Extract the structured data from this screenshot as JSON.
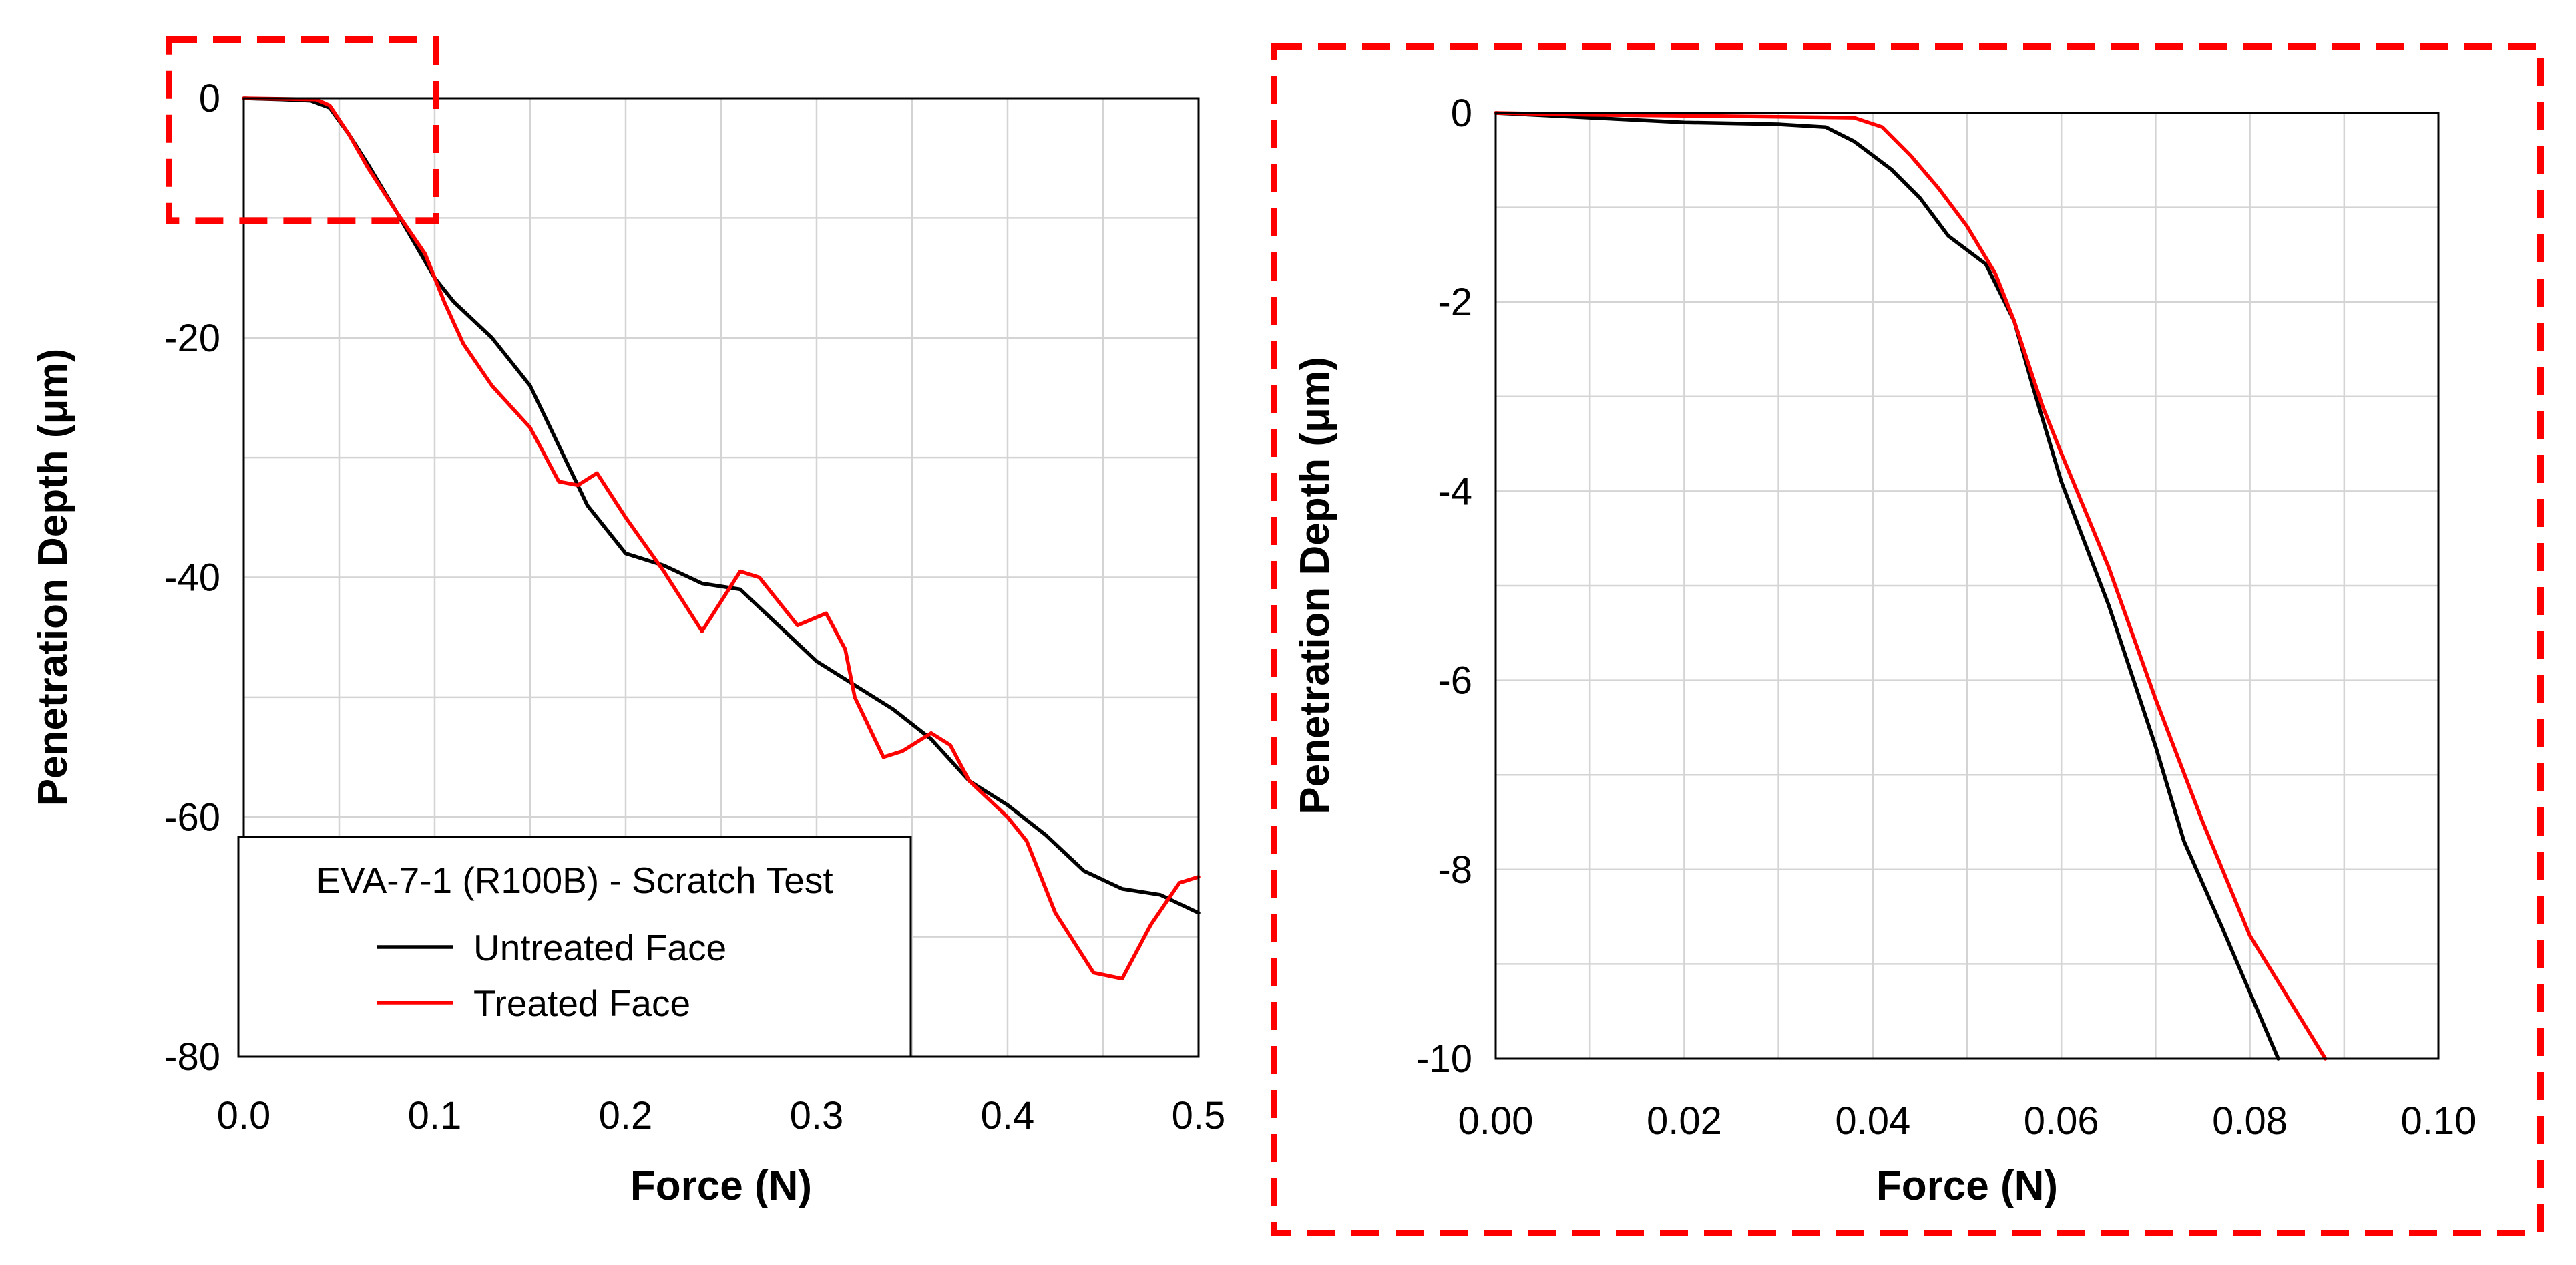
{
  "chart_data": [
    {
      "type": "line",
      "title": "",
      "xlabel": "Force (N)",
      "ylabel": "Penetration Depth (μm)",
      "xlim": [
        0,
        0.5
      ],
      "ylim": [
        -80,
        0
      ],
      "xticks": [
        "0.0",
        "0.1",
        "0.2",
        "0.3",
        "0.4",
        "0.5"
      ],
      "yticks": [
        "0",
        "-20",
        "-40",
        "-60",
        "-80"
      ],
      "grid": true,
      "legend": {
        "title": "EVA-7-1 (R100B) - Scratch Test",
        "placement": "bottom-left",
        "entries": [
          "Untreated Face",
          "Treated Face"
        ]
      },
      "zoom_region": {
        "x": [
          0,
          0.1
        ],
        "y": [
          -10,
          0
        ]
      },
      "series": [
        {
          "name": "Untreated Face",
          "color": "#000000",
          "x": [
            0,
            0.02,
            0.035,
            0.045,
            0.055,
            0.065,
            0.08,
            0.1,
            0.11,
            0.13,
            0.15,
            0.165,
            0.18,
            0.2,
            0.22,
            0.24,
            0.26,
            0.28,
            0.3,
            0.32,
            0.34,
            0.36,
            0.38,
            0.4,
            0.42,
            0.44,
            0.46,
            0.48,
            0.5
          ],
          "y": [
            0,
            -0.1,
            -0.2,
            -0.8,
            -3,
            -5.5,
            -9.5,
            -15,
            -17,
            -20,
            -24,
            -29,
            -34,
            -38,
            -39,
            -40.5,
            -41,
            -44,
            -47,
            -49,
            -51,
            -53.5,
            -57,
            -59,
            -61.5,
            -64.5,
            -66,
            -66.5,
            -68
          ]
        },
        {
          "name": "Treated Face",
          "color": "#ff0000",
          "x": [
            0,
            0.02,
            0.038,
            0.045,
            0.055,
            0.065,
            0.08,
            0.095,
            0.105,
            0.115,
            0.13,
            0.15,
            0.165,
            0.175,
            0.185,
            0.2,
            0.22,
            0.24,
            0.26,
            0.27,
            0.29,
            0.305,
            0.315,
            0.32,
            0.335,
            0.345,
            0.36,
            0.37,
            0.38,
            0.4,
            0.41,
            0.425,
            0.445,
            0.46,
            0.475,
            0.49,
            0.5
          ],
          "y": [
            0,
            -0.05,
            -0.1,
            -0.6,
            -3,
            -5.8,
            -9.5,
            -13,
            -17,
            -20.5,
            -24,
            -27.5,
            -32,
            -32.3,
            -31.3,
            -35,
            -39.5,
            -44.5,
            -39.5,
            -40,
            -44,
            -43,
            -46,
            -50,
            -55,
            -54.5,
            -53,
            -54,
            -57,
            -60,
            -62,
            -68,
            -73,
            -73.5,
            -69,
            -65.5,
            -65
          ]
        }
      ]
    },
    {
      "type": "line",
      "title": "",
      "xlabel": "Force (N)",
      "ylabel": "Penetration Depth (μm)",
      "xlim": [
        0,
        0.1
      ],
      "ylim": [
        -10,
        0
      ],
      "xticks": [
        "0.00",
        "0.02",
        "0.04",
        "0.06",
        "0.08",
        "0.10"
      ],
      "yticks": [
        "0",
        "-2",
        "-4",
        "-6",
        "-8",
        "-10"
      ],
      "grid": true,
      "series": [
        {
          "name": "Untreated Face",
          "color": "#000000",
          "x": [
            0,
            0.01,
            0.02,
            0.03,
            0.035,
            0.038,
            0.042,
            0.045,
            0.048,
            0.052,
            0.055,
            0.057,
            0.06,
            0.065,
            0.07,
            0.073,
            0.077,
            0.083
          ],
          "y": [
            0,
            -0.05,
            -0.1,
            -0.12,
            -0.15,
            -0.3,
            -0.6,
            -0.9,
            -1.3,
            -1.6,
            -2.2,
            -2.9,
            -3.9,
            -5.2,
            -6.7,
            -7.7,
            -8.6,
            -10
          ]
        },
        {
          "name": "Treated Face",
          "color": "#ff0000",
          "x": [
            0,
            0.01,
            0.02,
            0.03,
            0.038,
            0.041,
            0.044,
            0.047,
            0.05,
            0.053,
            0.055,
            0.058,
            0.06,
            0.065,
            0.07,
            0.075,
            0.08,
            0.088
          ],
          "y": [
            0,
            -0.02,
            -0.03,
            -0.04,
            -0.05,
            -0.15,
            -0.45,
            -0.8,
            -1.2,
            -1.7,
            -2.2,
            -3.1,
            -3.6,
            -4.8,
            -6.2,
            -7.5,
            -8.7,
            -10
          ]
        }
      ]
    }
  ]
}
